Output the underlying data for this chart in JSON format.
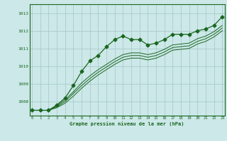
{
  "x": [
    0,
    1,
    2,
    3,
    4,
    5,
    6,
    7,
    8,
    9,
    10,
    11,
    12,
    13,
    14,
    15,
    16,
    17,
    18,
    19,
    20,
    21,
    22,
    23
  ],
  "line_main": [
    1007.5,
    1007.5,
    1007.5,
    1007.8,
    1008.2,
    1008.9,
    1009.7,
    1010.3,
    1010.6,
    1011.1,
    1011.5,
    1011.7,
    1011.5,
    1011.5,
    1011.2,
    1011.3,
    1011.5,
    1011.8,
    1011.8,
    1011.8,
    1012.0,
    1012.1,
    1012.3,
    1012.8
  ],
  "line_a": [
    1007.5,
    1007.5,
    1007.5,
    1007.65,
    1007.9,
    1008.3,
    1008.75,
    1009.15,
    1009.5,
    1009.8,
    1010.1,
    1010.35,
    1010.45,
    1010.45,
    1010.35,
    1010.45,
    1010.65,
    1010.9,
    1010.95,
    1011.0,
    1011.25,
    1011.4,
    1011.65,
    1012.0
  ],
  "line_b": [
    1007.5,
    1007.5,
    1007.5,
    1007.7,
    1008.0,
    1008.45,
    1008.9,
    1009.3,
    1009.65,
    1009.95,
    1010.25,
    1010.5,
    1010.6,
    1010.6,
    1010.5,
    1010.6,
    1010.8,
    1011.05,
    1011.1,
    1011.15,
    1011.4,
    1011.55,
    1011.8,
    1012.15
  ],
  "line_c": [
    1007.5,
    1007.5,
    1007.5,
    1007.75,
    1008.1,
    1008.55,
    1009.05,
    1009.45,
    1009.8,
    1010.1,
    1010.4,
    1010.65,
    1010.75,
    1010.75,
    1010.65,
    1010.75,
    1010.95,
    1011.2,
    1011.25,
    1011.3,
    1011.55,
    1011.7,
    1011.95,
    1012.3
  ],
  "bg_color": "#cce8e8",
  "grid_color": "#aacccc",
  "line_color": "#1a6620",
  "marker": "D",
  "marker_size": 2.5,
  "ylabel_ticks": [
    1008,
    1009,
    1010,
    1011,
    1012,
    1013
  ],
  "xlabel": "Graphe pression niveau de la mer (hPa)",
  "ylim": [
    1007.2,
    1013.5
  ],
  "xlim": [
    -0.3,
    23.3
  ]
}
